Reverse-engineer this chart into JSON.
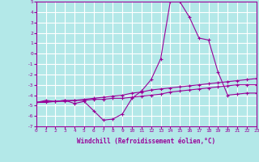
{
  "xlabel": "Windchill (Refroidissement éolien,°C)",
  "bg_color": "#b3e8e8",
  "line_color": "#990099",
  "grid_color": "#ffffff",
  "xlim": [
    0,
    23
  ],
  "ylim": [
    -7,
    5
  ],
  "xticks": [
    0,
    1,
    2,
    3,
    4,
    5,
    6,
    7,
    8,
    9,
    10,
    11,
    12,
    13,
    14,
    15,
    16,
    17,
    18,
    19,
    20,
    21,
    22,
    23
  ],
  "yticks": [
    -7,
    -6,
    -5,
    -4,
    -3,
    -2,
    -1,
    0,
    1,
    2,
    3,
    4,
    5
  ],
  "line1_x": [
    0,
    1,
    2,
    3,
    4,
    5,
    6,
    7,
    8,
    9,
    10,
    11,
    12,
    13,
    14,
    15,
    16,
    17,
    18,
    19,
    20,
    21,
    22,
    23
  ],
  "line1_y": [
    -4.7,
    -4.6,
    -4.6,
    -4.5,
    -4.5,
    -4.4,
    -4.3,
    -4.2,
    -4.1,
    -4.0,
    -3.8,
    -3.7,
    -3.5,
    -3.4,
    -3.3,
    -3.2,
    -3.1,
    -3.0,
    -2.9,
    -2.8,
    -2.7,
    -2.6,
    -2.5,
    -2.4
  ],
  "line2_x": [
    0,
    1,
    2,
    3,
    4,
    5,
    6,
    7,
    8,
    9,
    10,
    11,
    12,
    13,
    14,
    15,
    16,
    17,
    18,
    19,
    20,
    21,
    22,
    23
  ],
  "line2_y": [
    -4.7,
    -4.7,
    -4.6,
    -4.6,
    -4.5,
    -4.5,
    -4.4,
    -4.4,
    -4.3,
    -4.3,
    -4.2,
    -4.1,
    -4.0,
    -3.9,
    -3.7,
    -3.6,
    -3.5,
    -3.4,
    -3.3,
    -3.2,
    -3.1,
    -3.0,
    -3.0,
    -3.0
  ],
  "line3_x": [
    0,
    1,
    2,
    3,
    4,
    5,
    6,
    7,
    8,
    9,
    10,
    11,
    12,
    13,
    14,
    15,
    16,
    17,
    18,
    19,
    20,
    21,
    22,
    23
  ],
  "line3_y": [
    -4.7,
    -4.5,
    -4.6,
    -4.5,
    -4.8,
    -4.6,
    -5.5,
    -6.4,
    -6.3,
    -5.8,
    -4.3,
    -3.6,
    -2.5,
    -0.5,
    5.0,
    5.0,
    3.5,
    1.5,
    1.3,
    -1.8,
    -4.0,
    -3.9,
    -3.8,
    -3.8
  ]
}
